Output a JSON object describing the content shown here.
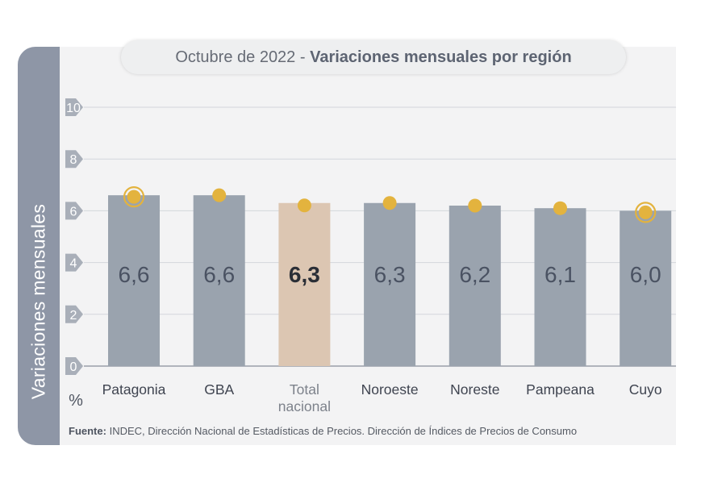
{
  "title": {
    "part1": "Octubre de 2022",
    "separator": " - ",
    "part2": "Variaciones mensuales por región"
  },
  "y_axis_label": "Variaciones  mensuales",
  "unit_label": "%",
  "source": {
    "label": "Fuente:",
    "text": "INDEC, Dirección Nacional de Estadísticas de Precios. Dirección de Índices de Precios de Consumo"
  },
  "colors": {
    "bar": "#9aa3ae",
    "highlight_bar": "#dcc6b2",
    "marker": "#e3b33e",
    "side_band": "#8e96a6",
    "value_text": "#4a5262"
  },
  "chart_data": {
    "type": "bar",
    "categories": [
      "Patagonia",
      "GBA",
      "Total nacional",
      "Noroeste",
      "Noreste",
      "Pampeana",
      "Cuyo"
    ],
    "category_lines": [
      [
        "Patagonia"
      ],
      [
        "GBA"
      ],
      [
        "Total",
        "nacional"
      ],
      [
        "Noroeste"
      ],
      [
        "Noreste"
      ],
      [
        "Pampeana"
      ],
      [
        "Cuyo"
      ]
    ],
    "values": [
      6.6,
      6.6,
      6.3,
      6.3,
      6.2,
      6.1,
      6.0
    ],
    "value_labels": [
      "6,6",
      "6,6",
      "6,3",
      "6,3",
      "6,2",
      "6,1",
      "6,0"
    ],
    "highlight_index": 2,
    "ringed_markers": [
      0,
      6
    ],
    "y_ticks": [
      0,
      2,
      4,
      6,
      8,
      10
    ],
    "ylim": [
      0,
      10
    ],
    "grid": true
  }
}
